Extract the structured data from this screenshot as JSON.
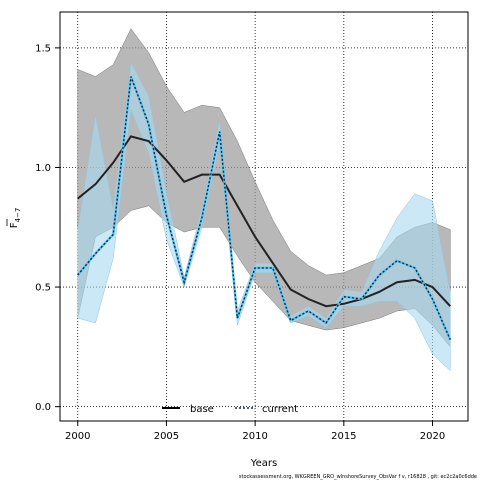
{
  "chart_data": {
    "type": "line",
    "xlabel": "Years",
    "ylabel_main": "F",
    "ylabel_sub": "4−7",
    "xlim": [
      1999,
      2022
    ],
    "ylim": [
      -0.06,
      1.65
    ],
    "x_ticks": [
      2000,
      2005,
      2010,
      2015,
      2020
    ],
    "y_ticks": [
      0.0,
      0.5,
      1.0,
      1.5
    ],
    "y_tick_labels": [
      "0.0",
      "0.5",
      "1.0",
      "1.5"
    ],
    "grid": true,
    "legend_position": "bottom-center",
    "series": [
      {
        "name": "base",
        "line_color": "#222222",
        "band_color": "#9a9a9a",
        "x": [
          2000,
          2001,
          2002,
          2003,
          2004,
          2005,
          2006,
          2007,
          2008,
          2009,
          2010,
          2011,
          2012,
          2013,
          2014,
          2015,
          2016,
          2017,
          2018,
          2019,
          2020,
          2021
        ],
        "values": [
          0.87,
          0.93,
          1.02,
          1.13,
          1.11,
          1.03,
          0.94,
          0.97,
          0.97,
          0.84,
          0.71,
          0.6,
          0.49,
          0.45,
          0.42,
          0.43,
          0.45,
          0.48,
          0.52,
          0.53,
          0.5,
          0.42
        ],
        "lower": [
          0.37,
          0.71,
          0.75,
          0.82,
          0.84,
          0.77,
          0.73,
          0.75,
          0.75,
          0.63,
          0.52,
          0.44,
          0.36,
          0.34,
          0.32,
          0.33,
          0.35,
          0.37,
          0.4,
          0.41,
          0.34,
          0.25
        ],
        "upper": [
          1.41,
          1.38,
          1.43,
          1.58,
          1.48,
          1.34,
          1.23,
          1.26,
          1.25,
          1.11,
          0.94,
          0.78,
          0.65,
          0.59,
          0.55,
          0.56,
          0.59,
          0.62,
          0.71,
          0.75,
          0.77,
          0.74
        ]
      },
      {
        "name": "current",
        "line_color": "#0a2a4a",
        "band_color": "#a9d8f0",
        "x": [
          2000,
          2001,
          2002,
          2003,
          2004,
          2005,
          2006,
          2007,
          2008,
          2009,
          2010,
          2011,
          2012,
          2013,
          2014,
          2015,
          2016,
          2017,
          2018,
          2019,
          2020,
          2021
        ],
        "values": [
          0.55,
          0.64,
          0.72,
          1.38,
          1.18,
          0.8,
          0.52,
          0.79,
          1.15,
          0.37,
          0.58,
          0.58,
          0.36,
          0.4,
          0.35,
          0.46,
          0.45,
          0.55,
          0.61,
          0.58,
          0.45,
          0.28
        ],
        "lower": [
          0.37,
          0.35,
          0.62,
          1.24,
          1.06,
          0.7,
          0.5,
          0.75,
          1.1,
          0.34,
          0.56,
          0.56,
          0.35,
          0.38,
          0.33,
          0.42,
          0.42,
          0.44,
          0.44,
          0.37,
          0.22,
          0.15
        ],
        "upper": [
          0.74,
          1.22,
          0.83,
          1.44,
          1.3,
          0.9,
          0.54,
          0.83,
          1.2,
          0.4,
          0.6,
          0.6,
          0.38,
          0.42,
          0.37,
          0.49,
          0.48,
          0.65,
          0.79,
          0.89,
          0.86,
          0.48
        ]
      }
    ]
  },
  "legend": {
    "base_label": "base",
    "current_label": "current"
  },
  "footer": {
    "text": "stockassessment.org,  WKGREEN_GRO_wlnshoreSurvey_ObsVar  f v,  r16828 , git:  ec2c2a0c6dde"
  }
}
